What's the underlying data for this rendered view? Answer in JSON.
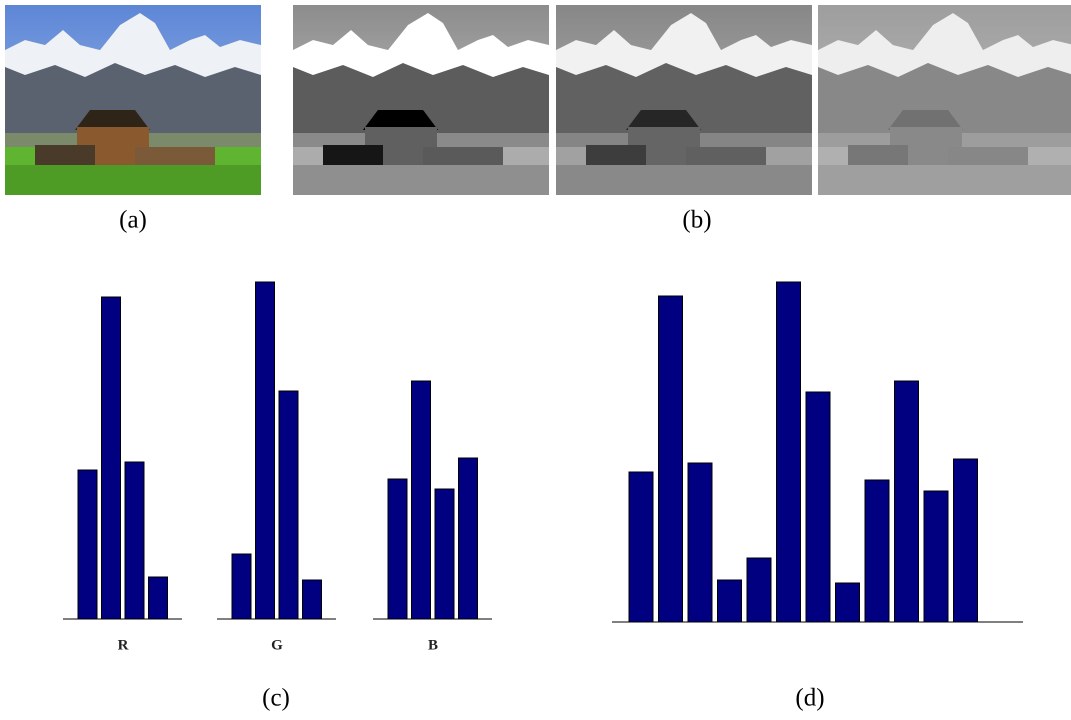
{
  "figure": {
    "panel_labels": [
      "(a)",
      "(b)",
      "(c)",
      "(d)"
    ]
  },
  "chart_data": [
    {
      "type": "grouped-bar",
      "series": [
        {
          "name": "R",
          "color": "#000080",
          "values": [
            149,
            322,
            157,
            42
          ]
        },
        {
          "name": "G",
          "color": "#000080",
          "values": [
            65,
            337,
            228,
            39
          ]
        },
        {
          "name": "B",
          "color": "#000080",
          "values": [
            140,
            238,
            130,
            161
          ]
        }
      ]
    },
    {
      "type": "bar",
      "color": "#000080",
      "values": [
        150,
        326,
        159,
        42,
        64,
        340,
        230,
        39,
        142,
        241,
        131,
        163
      ]
    }
  ]
}
